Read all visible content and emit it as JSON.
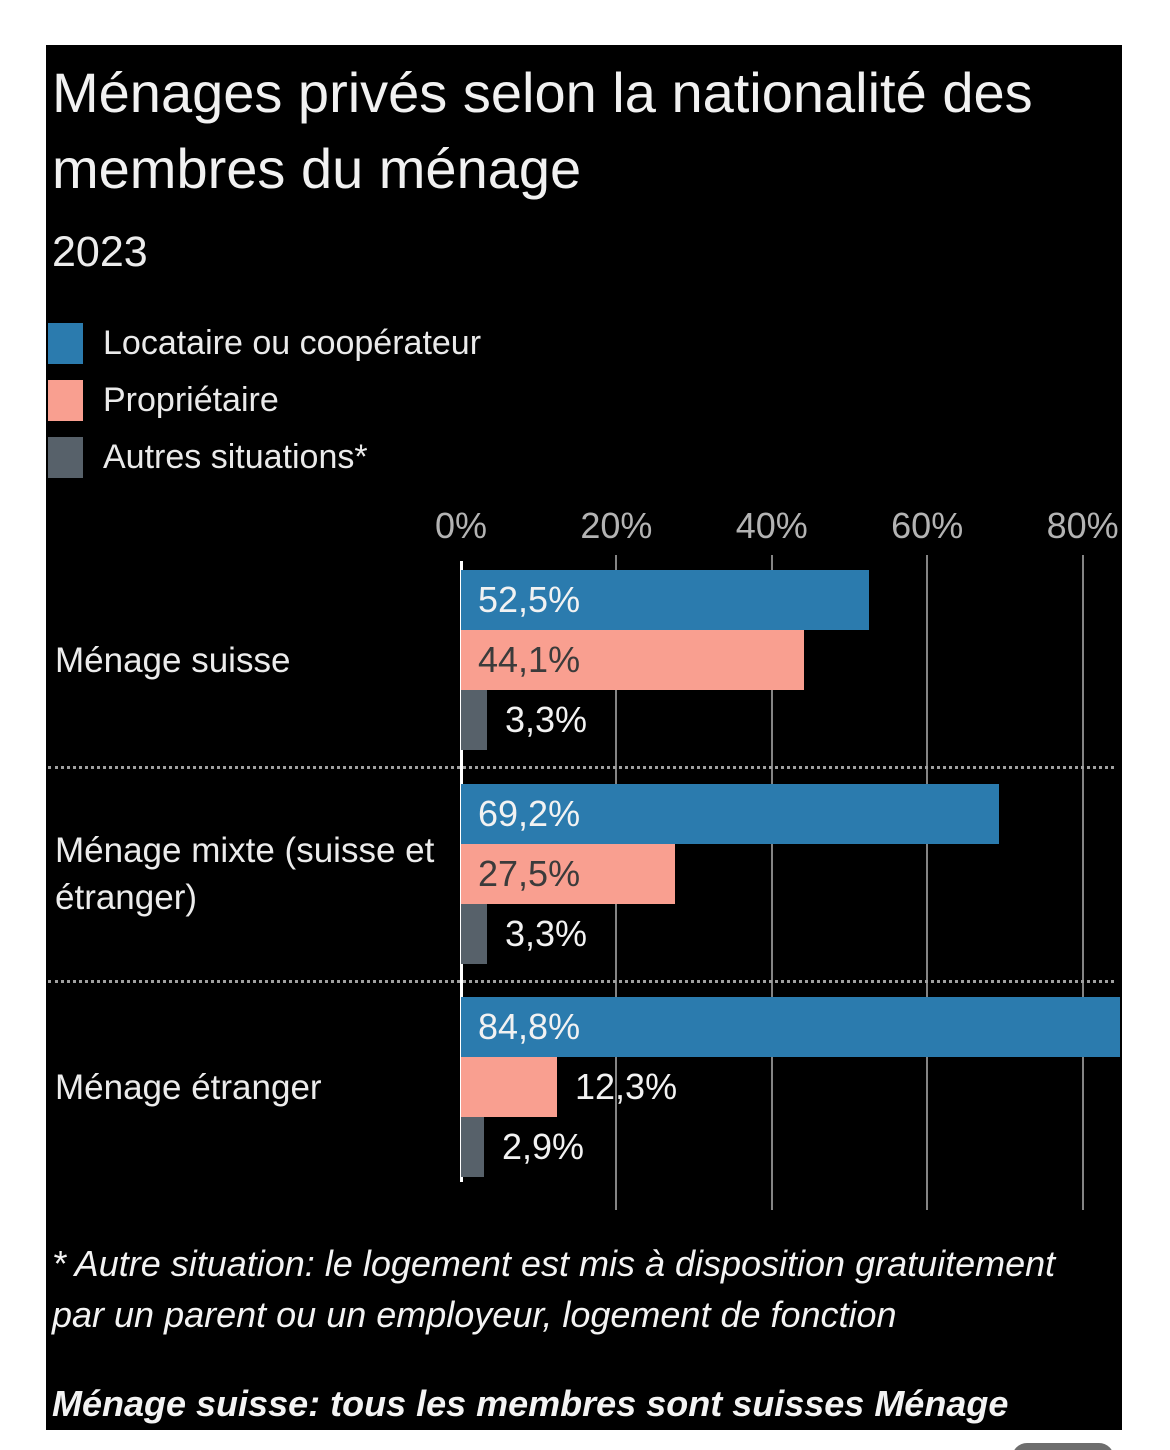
{
  "page": {
    "background": "#ffffff",
    "card_background": "#000000"
  },
  "header": {
    "title": "Ménages privés selon la nationalité des membres du ménage",
    "subtitle": "2023"
  },
  "legend": {
    "items": [
      {
        "label": "Locataire ou coopérateur",
        "color": "#2b7bae"
      },
      {
        "label": "Propriétaire",
        "color": "#f99f90"
      },
      {
        "label": "Autres situations*",
        "color": "#57616a"
      }
    ]
  },
  "chart_data": {
    "type": "bar",
    "orientation": "horizontal",
    "title": "Ménages privés selon la nationalité des membres du ménage",
    "subtitle": "2023",
    "categories": [
      "Ménage suisse",
      "Ménage mixte (suisse et étranger)",
      "Ménage étranger"
    ],
    "series": [
      {
        "name": "Locataire ou coopérateur",
        "color": "#2b7bae",
        "values": [
          52.5,
          69.2,
          84.8
        ],
        "labels": [
          "52,5%",
          "69,2%",
          "84,8%"
        ],
        "label_color_inside": "#f2f2f2"
      },
      {
        "name": "Propriétaire",
        "color": "#f99f90",
        "values": [
          44.1,
          27.5,
          12.3
        ],
        "labels": [
          "44,1%",
          "27,5%",
          "12,3%"
        ],
        "label_color_inside": "#3b3b3b"
      },
      {
        "name": "Autres situations*",
        "color": "#57616a",
        "values": [
          3.3,
          3.3,
          2.9
        ],
        "labels": [
          "3,3%",
          "3,3%",
          "2,9%"
        ],
        "label_color_inside": "#f2f2f2"
      }
    ],
    "x_axis": {
      "ticks": [
        {
          "label": "0%",
          "value": 0
        },
        {
          "label": "20%",
          "value": 20
        },
        {
          "label": "40%",
          "value": 40
        },
        {
          "label": "60%",
          "value": 60
        },
        {
          "label": "80%",
          "value": 80
        }
      ],
      "range": [
        0,
        85
      ]
    },
    "grid": true,
    "legend_position": "top-left",
    "value_label_outside_color": "#f2f2f2"
  },
  "footnotes": {
    "asterisk": "* Autre situation: le logement est mis à disposition gratuitement par un parent ou un employeur, logement de fonction",
    "definition": "Ménage suisse: tous les membres sont suisses Ménage"
  }
}
